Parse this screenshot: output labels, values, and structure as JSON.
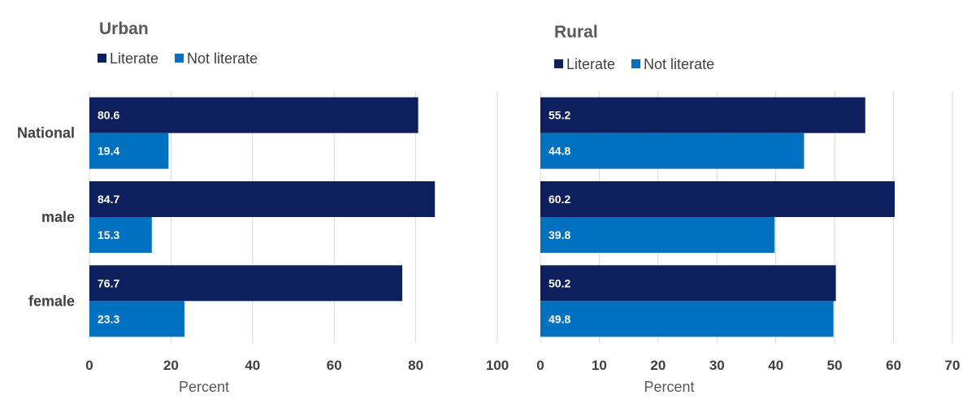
{
  "chart_data": [
    {
      "type": "bar",
      "orientation": "horizontal",
      "title": "Urban",
      "categories": [
        "National",
        "male",
        "female"
      ],
      "series": [
        {
          "name": "Literate",
          "values": [
            80.6,
            84.7,
            76.7
          ],
          "color": "#0d1f5c"
        },
        {
          "name": "Not literate",
          "values": [
            19.4,
            15.3,
            23.3
          ],
          "color": "#0070c0"
        }
      ],
      "xlabel": "Percent",
      "xlim": [
        0,
        100
      ],
      "ticks": [
        0,
        20,
        40,
        60,
        80,
        100
      ],
      "grid": true,
      "legend": "top-left"
    },
    {
      "type": "bar",
      "orientation": "horizontal",
      "title": "Rural",
      "categories": [
        "National",
        "male",
        "female"
      ],
      "series": [
        {
          "name": "Literate",
          "values": [
            55.2,
            60.2,
            50.2
          ],
          "color": "#0d1f5c"
        },
        {
          "name": "Not literate",
          "values": [
            44.8,
            39.8,
            49.8
          ],
          "color": "#0070c0"
        }
      ],
      "xlabel": "Percent",
      "xlim": [
        0,
        70
      ],
      "ticks": [
        0,
        10,
        20,
        30,
        40,
        50,
        60,
        70
      ],
      "grid": true,
      "legend": "top-left"
    }
  ]
}
